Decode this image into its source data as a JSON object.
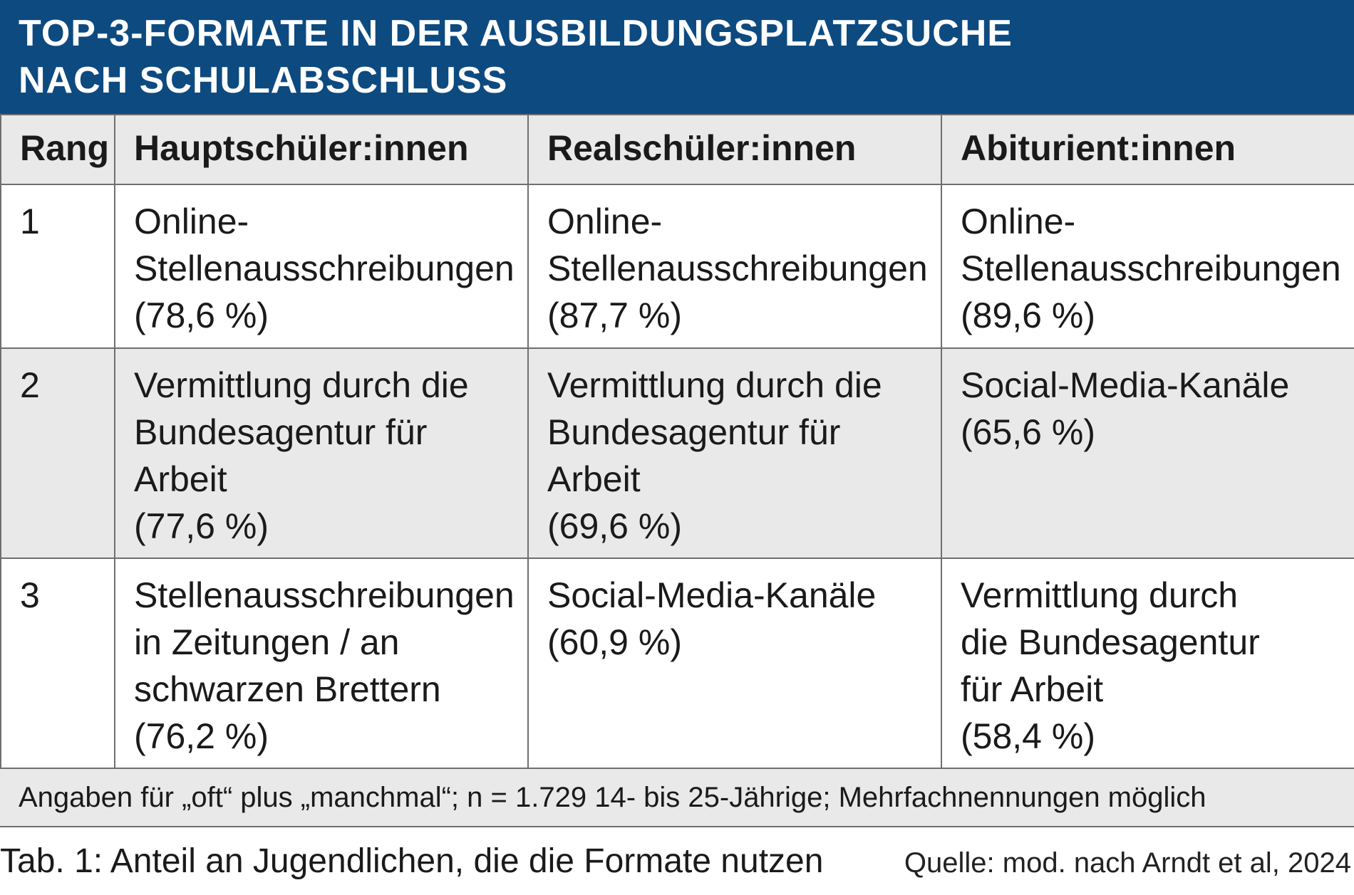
{
  "title": {
    "line1": "TOP-3-FORMATE IN DER AUSBILDUNGSPLATZSUCHE",
    "line2": "NACH SCHULABSCHLUSS"
  },
  "table": {
    "headers": {
      "rang": "Rang",
      "haupt": "Hauptschüler:innen",
      "real": "Realschüler:innen",
      "abi": "Abiturient:innen"
    },
    "rows": [
      {
        "rang": "1",
        "haupt": [
          "Online-",
          "Stellenausschreibungen",
          "(78,6 %)"
        ],
        "real": [
          "Online-",
          "Stellenausschreibungen",
          "(87,7 %)"
        ],
        "abi": [
          "Online-",
          "Stellenausschreibungen",
          "(89,6 %)"
        ]
      },
      {
        "rang": "2",
        "haupt": [
          "Vermittlung durch die",
          "Bundesagentur für",
          "Arbeit",
          "(77,6 %)"
        ],
        "real": [
          "Vermittlung durch die",
          "Bundesagentur für",
          "Arbeit",
          "(69,6 %)"
        ],
        "abi": [
          "Social-Media-Kanäle",
          "(65,6 %)"
        ]
      },
      {
        "rang": "3",
        "haupt": [
          "Stellenausschreibungen",
          "in Zeitungen / an",
          "schwarzen Brettern",
          "(76,2 %)"
        ],
        "real": [
          "Social-Media-Kanäle",
          "(60,9 %)"
        ],
        "abi": [
          "Vermittlung durch",
          "die Bundesagentur",
          "für Arbeit",
          "(58,4 %)"
        ]
      }
    ],
    "footnote": "Angaben für „oft“ plus „manchmal“; n = 1.729 14- bis 25-Jährige; Mehrfachnennungen möglich"
  },
  "caption": "Tab. 1: Anteil an Jugendlichen, die die Formate nutzen",
  "source": "Quelle: mod. nach Arndt et al, 2024",
  "colors": {
    "title_bg": "#0d4a80",
    "shade": "#e9e9e9",
    "border": "#6f6f6f"
  }
}
